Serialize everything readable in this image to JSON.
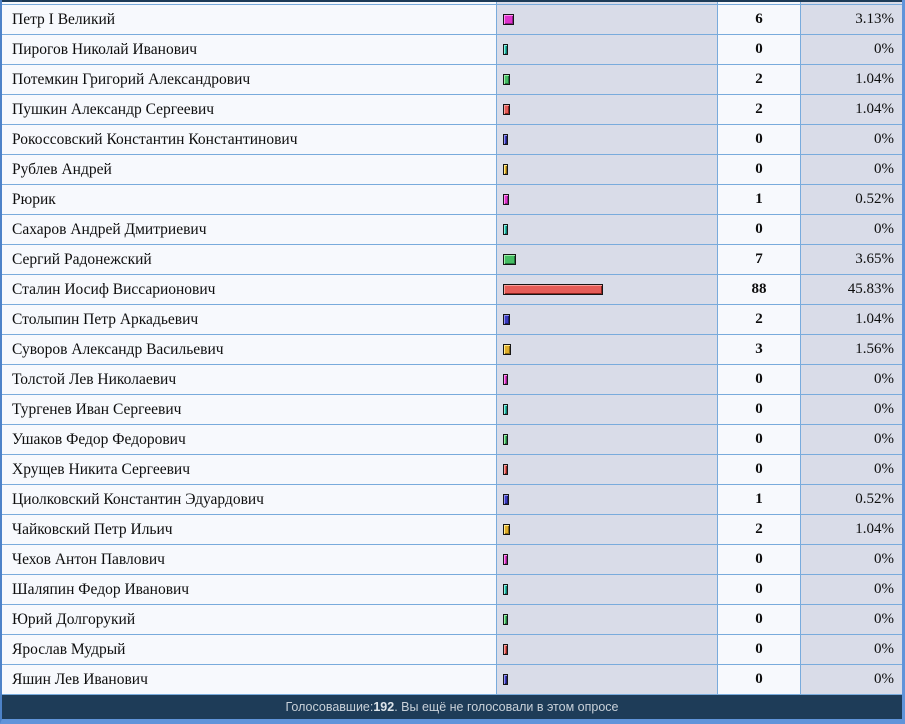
{
  "poll": {
    "rows": [
      {
        "name": "Петр I Великий",
        "votes": "6",
        "percent": "3.13%",
        "percent_value": 3.13
      },
      {
        "name": "Пирогов Николай Иванович",
        "votes": "0",
        "percent": "0%",
        "percent_value": 0
      },
      {
        "name": "Потемкин Григорий Александрович",
        "votes": "2",
        "percent": "1.04%",
        "percent_value": 1.04
      },
      {
        "name": "Пушкин Александр Сергеевич",
        "votes": "2",
        "percent": "1.04%",
        "percent_value": 1.04
      },
      {
        "name": "Рокоссовский Константин Константинович",
        "votes": "0",
        "percent": "0%",
        "percent_value": 0
      },
      {
        "name": "Рублев Андрей",
        "votes": "0",
        "percent": "0%",
        "percent_value": 0
      },
      {
        "name": "Рюрик",
        "votes": "1",
        "percent": "0.52%",
        "percent_value": 0.52
      },
      {
        "name": "Сахаров Андрей Дмитриевич",
        "votes": "0",
        "percent": "0%",
        "percent_value": 0
      },
      {
        "name": "Сергий Радонежский",
        "votes": "7",
        "percent": "3.65%",
        "percent_value": 3.65
      },
      {
        "name": "Сталин Иосиф Виссарионович",
        "votes": "88",
        "percent": "45.83%",
        "percent_value": 45.83
      },
      {
        "name": "Столыпин Петр Аркадьевич",
        "votes": "2",
        "percent": "1.04%",
        "percent_value": 1.04
      },
      {
        "name": "Суворов Александр Васильевич",
        "votes": "3",
        "percent": "1.56%",
        "percent_value": 1.56
      },
      {
        "name": "Толстой Лев Николаевич",
        "votes": "0",
        "percent": "0%",
        "percent_value": 0
      },
      {
        "name": "Тургенев Иван Сергеевич",
        "votes": "0",
        "percent": "0%",
        "percent_value": 0
      },
      {
        "name": "Ушаков Федор Федорович",
        "votes": "0",
        "percent": "0%",
        "percent_value": 0
      },
      {
        "name": "Хрущев Никита Сергеевич",
        "votes": "0",
        "percent": "0%",
        "percent_value": 0
      },
      {
        "name": "Циолковский Константин Эдуардович",
        "votes": "1",
        "percent": "0.52%",
        "percent_value": 0.52
      },
      {
        "name": "Чайковский Петр Ильич",
        "votes": "2",
        "percent": "1.04%",
        "percent_value": 1.04
      },
      {
        "name": "Чехов Антон Павлович",
        "votes": "0",
        "percent": "0%",
        "percent_value": 0
      },
      {
        "name": "Шаляпин Федор Иванович",
        "votes": "0",
        "percent": "0%",
        "percent_value": 0
      },
      {
        "name": "Юрий Долгорукий",
        "votes": "0",
        "percent": "0%",
        "percent_value": 0
      },
      {
        "name": "Ярослав Мудрый",
        "votes": "0",
        "percent": "0%",
        "percent_value": 0
      },
      {
        "name": "Яшин Лев Иванович",
        "votes": "0",
        "percent": "0%",
        "percent_value": 0
      }
    ],
    "footer": {
      "voters_label": "Голосовавшие: ",
      "voters_count": "192",
      "suffix": ". Вы ещё не голосовали в этом опросе"
    },
    "total_voters": 192
  },
  "colors": {
    "grid_line": "#79abdc",
    "outer_border": "#6094da",
    "row_light_bg": "#f7f9fd",
    "row_lavender_bg": "#d9dce8",
    "footer_bg": "#1e3c58",
    "footer_text": "#c9d1d9",
    "bar_cycle": [
      {
        "name": "magenta",
        "fill": "#dd33cc",
        "light": "#ff8cf0",
        "dark": "#8e1f86"
      },
      {
        "name": "teal",
        "fill": "#23bdab",
        "light": "#8ceede",
        "dark": "#0f7a6e"
      },
      {
        "name": "green",
        "fill": "#46bd63",
        "light": "#9aeea8",
        "dark": "#22763c"
      },
      {
        "name": "red",
        "fill": "#e55c57",
        "light": "#f7a09b",
        "dark": "#8e2420"
      },
      {
        "name": "blue",
        "fill": "#3a3ac0",
        "light": "#9090ee",
        "dark": "#1e1e72"
      },
      {
        "name": "yellow",
        "fill": "#dfae2a",
        "light": "#ffe98e",
        "dark": "#8a6a12"
      }
    ]
  }
}
